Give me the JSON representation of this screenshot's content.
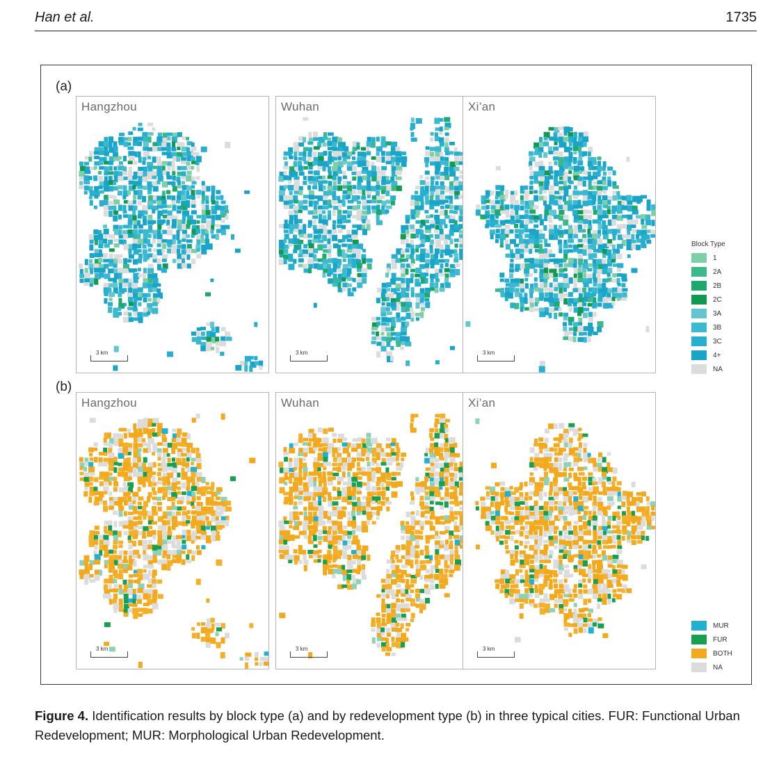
{
  "header": {
    "author": "Han et al.",
    "page_number": "1735"
  },
  "panels": {
    "a_label": "(a)",
    "b_label": "(b)"
  },
  "cities": [
    "Hangzhou",
    "Wuhan",
    "Xi’an"
  ],
  "scale_label": "3 km",
  "legend_a": {
    "title": "Block Type",
    "items": [
      {
        "label": "1",
        "color": "#7dcfa8"
      },
      {
        "label": "2A",
        "color": "#3cb98a"
      },
      {
        "label": "2B",
        "color": "#1ea96c"
      },
      {
        "label": "2C",
        "color": "#119a4f"
      },
      {
        "label": "3A",
        "color": "#63c6cf"
      },
      {
        "label": "3B",
        "color": "#3cb8cf"
      },
      {
        "label": "3C",
        "color": "#27afd0"
      },
      {
        "label": "4+",
        "color": "#1aa5c8"
      },
      {
        "label": "NA",
        "color": "#dcdcdc"
      }
    ]
  },
  "legend_b": {
    "items": [
      {
        "label": "MUR",
        "color": "#22b0d0"
      },
      {
        "label": "FUR",
        "color": "#17a050"
      },
      {
        "label": "BOTH",
        "color": "#f2a91d"
      },
      {
        "label": "NA",
        "color": "#dcdcdc"
      }
    ]
  },
  "caption": {
    "label": "Figure 4.",
    "text": " Identification results by block type (a) and by redevelopment type (b) in three typical cities. FUR: Functional Urban Redevelopment; MUR: Morphological Urban Redevelopment."
  }
}
